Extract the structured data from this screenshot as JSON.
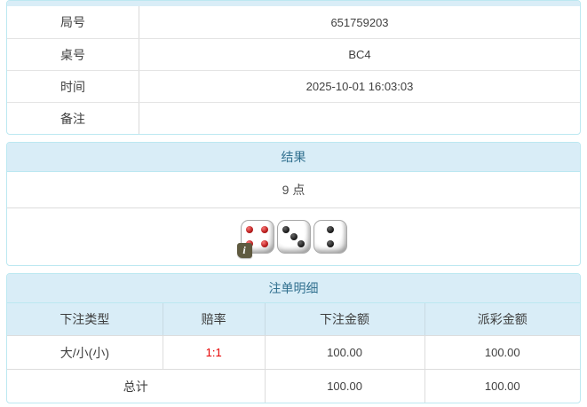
{
  "info_table": {
    "rows": [
      {
        "label": "局号",
        "value": "651759203"
      },
      {
        "label": "桌号",
        "value": "BC4"
      },
      {
        "label": "时间",
        "value": "2025-10-01 16:03:03"
      },
      {
        "label": "备注",
        "value": ""
      }
    ]
  },
  "result_panel": {
    "title": "结果",
    "points": "9 点",
    "dice": [
      {
        "value": 4,
        "color": "red",
        "pips": [
          "tl",
          "tr",
          "bl",
          "br"
        ]
      },
      {
        "value": 3,
        "color": "black",
        "pips": [
          "tl",
          "c",
          "br"
        ]
      },
      {
        "value": 2,
        "color": "black",
        "pips": [
          "tc",
          "bc"
        ]
      }
    ],
    "info_badge": "i"
  },
  "bets_panel": {
    "title": "注单明细",
    "columns": [
      "下注类型",
      "赔率",
      "下注金额",
      "派彩金额"
    ],
    "rows": [
      {
        "type": "大/小(小)",
        "odds": "1:1",
        "bet": "100.00",
        "payout": "100.00"
      }
    ],
    "total": {
      "label": "总计",
      "bet": "100.00",
      "payout": "100.00"
    }
  },
  "colors": {
    "panel_border": "#bce8f1",
    "header_bg": "#d9edf7",
    "header_text": "#31708f",
    "divider": "#dddddd",
    "body_text": "#404040",
    "odds_red": "#e60000",
    "pip_red": "#b91d1d",
    "pip_black": "#151515",
    "badge_bg": "#5f5a40"
  }
}
